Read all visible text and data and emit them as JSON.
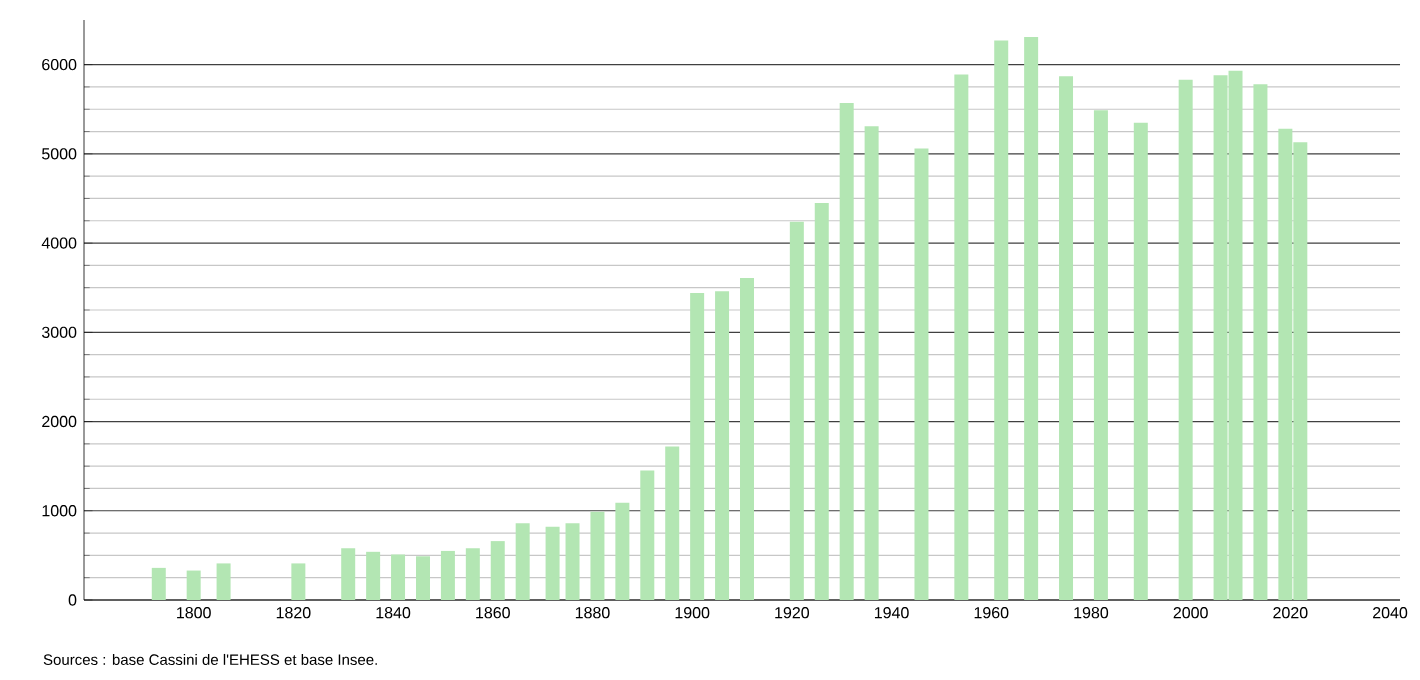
{
  "chart_data": {
    "type": "bar",
    "x": [
      1793,
      1800,
      1806,
      1821,
      1831,
      1836,
      1841,
      1846,
      1851,
      1856,
      1861,
      1866,
      1872,
      1876,
      1881,
      1886,
      1891,
      1896,
      1901,
      1906,
      1911,
      1921,
      1926,
      1931,
      1936,
      1946,
      1954,
      1962,
      1968,
      1975,
      1982,
      1990,
      1999,
      2006,
      2007,
      2008,
      2009,
      2014,
      2019,
      2022
    ],
    "values": [
      360,
      330,
      410,
      410,
      580,
      540,
      510,
      490,
      550,
      580,
      660,
      860,
      820,
      860,
      990,
      1090,
      1450,
      1720,
      3440,
      3460,
      3610,
      4240,
      4450,
      5570,
      5310,
      5060,
      5890,
      6270,
      6310,
      5870,
      5490,
      5350,
      5830,
      5880,
      null,
      null,
      5930,
      5780,
      5280,
      5130
    ],
    "color": "#b3e6b3",
    "xlim": [
      1778,
      2042
    ],
    "ylim": [
      0,
      6500
    ],
    "xticks": [
      1800,
      1820,
      1840,
      1860,
      1880,
      1900,
      1920,
      1940,
      1960,
      1980,
      2000,
      2020,
      2040
    ],
    "yticks": [
      0,
      1000,
      2000,
      3000,
      4000,
      5000,
      6000
    ],
    "grid": "y",
    "annotations": [
      "Sources : base Cassini de l'EHESS et base Insee."
    ]
  }
}
